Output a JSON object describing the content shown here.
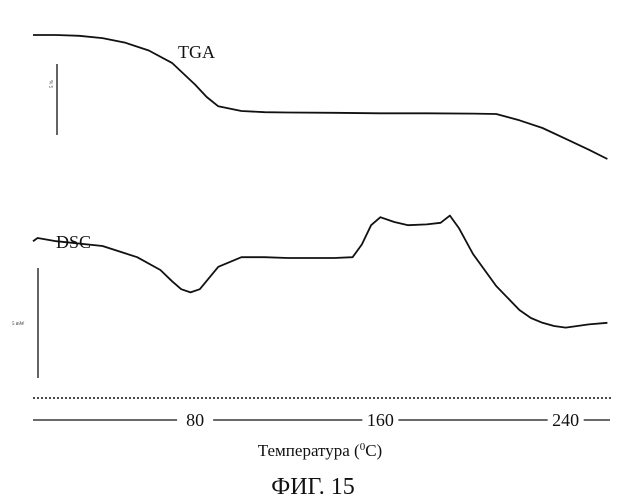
{
  "figure": {
    "caption": "ФИГ. 15",
    "xlabel_main": "Температура (",
    "xlabel_sup": "0",
    "xlabel_unit": "C)"
  },
  "chart_data": {
    "type": "line",
    "xlabel": "Температура (⁰C)",
    "ylabel": "",
    "x_ticks": [
      80,
      160,
      240
    ],
    "xlim": [
      10,
      260
    ],
    "grid": false,
    "legend": "none",
    "scale_bars": [
      {
        "label": "5 %",
        "for": "TGA"
      },
      {
        "label": "5 mW",
        "for": "DSC"
      }
    ],
    "series": [
      {
        "name": "TGA",
        "color": "#111111",
        "ylim": [
          0,
          100
        ],
        "x": [
          10,
          20,
          30,
          40,
          50,
          60,
          70,
          80,
          85,
          90,
          100,
          110,
          120,
          140,
          160,
          180,
          200,
          210,
          220,
          230,
          240,
          250,
          258
        ],
        "y": [
          100,
          100,
          99.5,
          98,
          95,
          90,
          82,
          68,
          60,
          54,
          51,
          50.2,
          50,
          49.8,
          49.5,
          49.5,
          49.3,
          49,
          45,
          40,
          33,
          26,
          20
        ]
      },
      {
        "name": "DSC",
        "color": "#111111",
        "ylim": [
          0,
          100
        ],
        "x": [
          10,
          12,
          20,
          40,
          55,
          65,
          70,
          74,
          78,
          82,
          90,
          100,
          110,
          120,
          130,
          140,
          148,
          152,
          156,
          160,
          166,
          172,
          180,
          186,
          190,
          194,
          200,
          210,
          220,
          225,
          230,
          235,
          240,
          245,
          250,
          258
        ],
        "y": [
          68,
          70,
          68,
          65,
          58,
          50,
          43,
          38,
          36,
          38,
          52,
          58,
          58,
          57.5,
          57.5,
          57.5,
          58,
          66,
          78,
          83,
          80,
          78,
          78.5,
          79.5,
          84,
          76,
          60,
          40,
          25,
          20,
          17,
          15,
          14,
          15,
          16,
          17
        ]
      }
    ]
  }
}
